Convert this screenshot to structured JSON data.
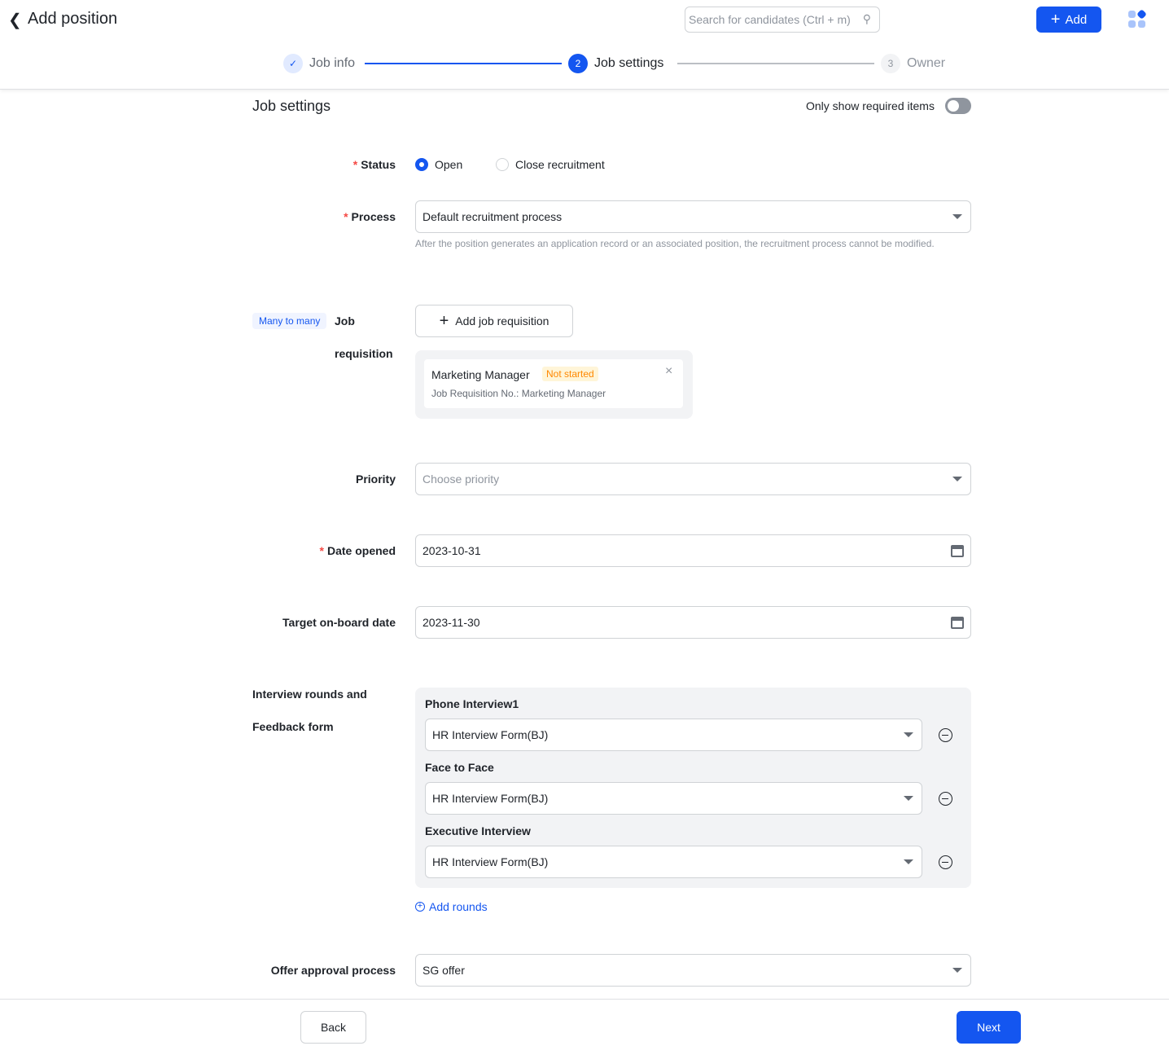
{
  "header": {
    "title": "Add position",
    "search_placeholder": "Search for candidates (Ctrl + m)",
    "add_label": "Add"
  },
  "steps": [
    {
      "num": "✓",
      "label": "Job info",
      "state": "done"
    },
    {
      "num": "2",
      "label": "Job settings",
      "state": "active"
    },
    {
      "num": "3",
      "label": "Owner",
      "state": "pending"
    }
  ],
  "section": {
    "title": "Job settings",
    "toggle_label": "Only show required items",
    "toggle_on": false
  },
  "status": {
    "label": "Status",
    "options": [
      "Open",
      "Close recruitment"
    ],
    "selected": "Open"
  },
  "process": {
    "label": "Process",
    "value": "Default recruitment process",
    "hint": "After the position generates an application record or an associated position, the recruitment process cannot be modified."
  },
  "requisition": {
    "tag": "Many to many",
    "label_1": "Job",
    "label_2": "requisition",
    "add_label": "Add job requisition",
    "card": {
      "name": "Marketing Manager",
      "status": "Not started",
      "number": "Job Requisition No.: Marketing Manager"
    }
  },
  "priority": {
    "label": "Priority",
    "placeholder": "Choose priority"
  },
  "date_opened": {
    "label": "Date opened",
    "value": "2023-10-31"
  },
  "target_date": {
    "label": "Target on-board date",
    "value": "2023-11-30"
  },
  "interview": {
    "label_1": "Interview rounds and",
    "label_2": "Feedback form",
    "rounds": [
      {
        "name": "Phone Interview1",
        "form": "HR Interview Form(BJ)"
      },
      {
        "name": "Face to Face",
        "form": "HR Interview Form(BJ)"
      },
      {
        "name": "Executive Interview",
        "form": "HR Interview Form(BJ)"
      }
    ],
    "add_label": "Add rounds"
  },
  "offer": {
    "label": "Offer approval process",
    "value": "SG offer"
  },
  "footer": {
    "back": "Back",
    "next": "Next"
  },
  "colors": {
    "primary": "#1456f0",
    "required": "#f54a45",
    "warning": "#ff8800"
  }
}
